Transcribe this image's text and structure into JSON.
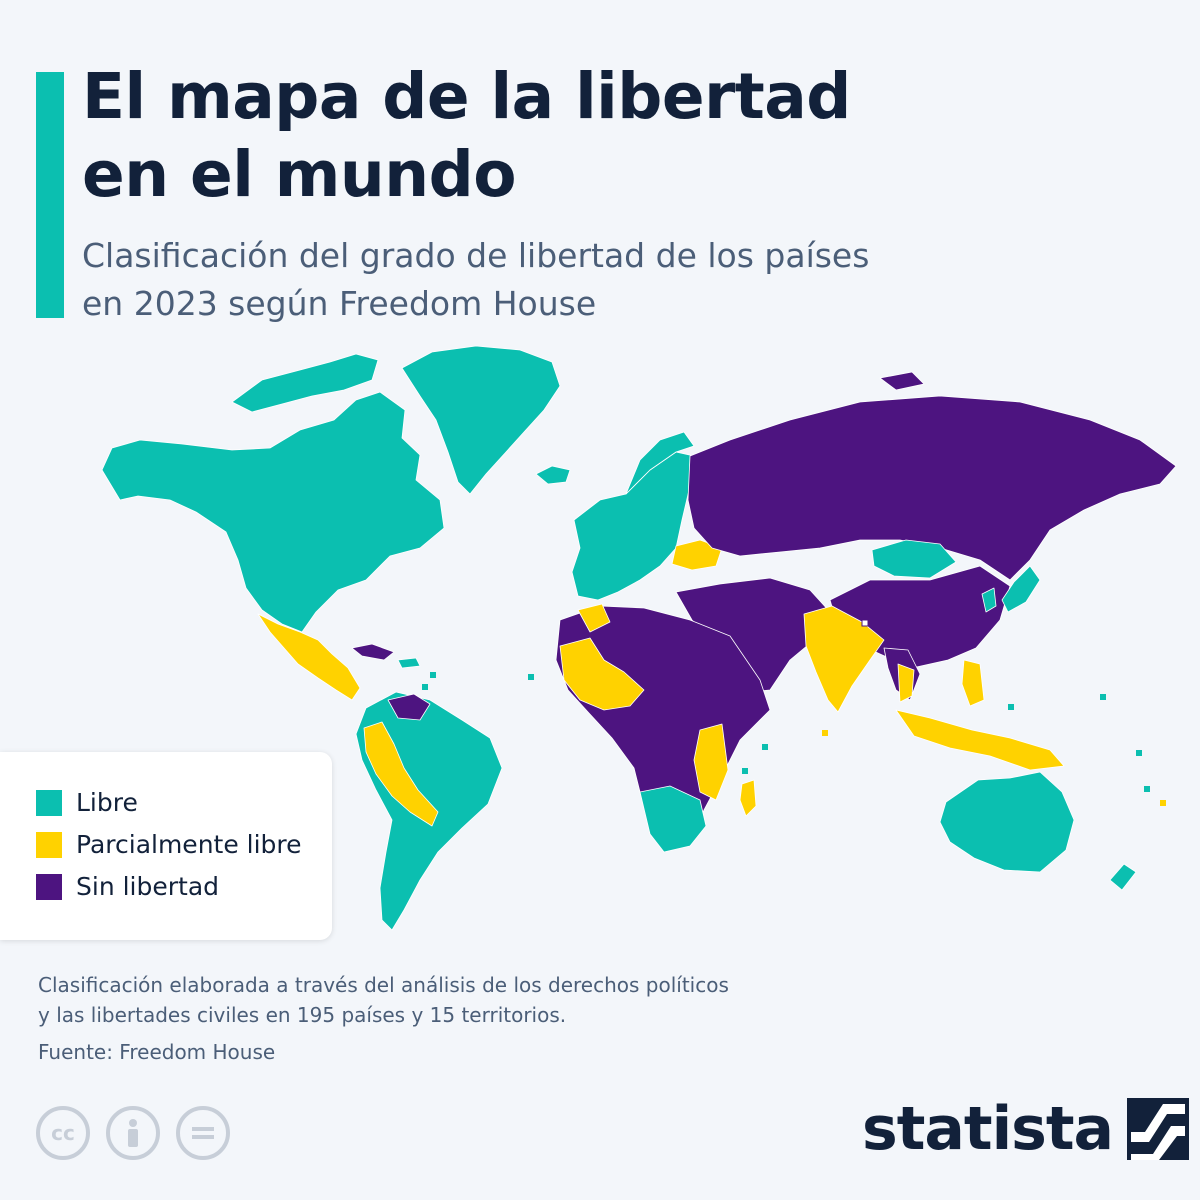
{
  "title_line1": "El mapa de la libertad",
  "title_line2": "en el mundo",
  "subtitle_line1": "Clasificación del grado de libertad de los países",
  "subtitle_line2": "en 2023 según Freedom House",
  "legend": [
    {
      "label": "Libre",
      "color": "#0bbfb0"
    },
    {
      "label": "Parcialmente libre",
      "color": "#ffd200"
    },
    {
      "label": "Sin libertad",
      "color": "#4d1480"
    }
  ],
  "note_line1": "Clasificación elaborada a través del análisis de los derechos políticos",
  "note_line2": "y las libertades civiles en 195 países y 15 territorios.",
  "source": "Fuente: Freedom House",
  "license_icons": [
    "cc-icon",
    "person-icon",
    "equals-icon"
  ],
  "brand": "statista",
  "colors": {
    "free": "#0bbfb0",
    "partly_free": "#ffd200",
    "not_free": "#4d1480",
    "accent": "#0bbfb0",
    "ink": "#12213a"
  }
}
